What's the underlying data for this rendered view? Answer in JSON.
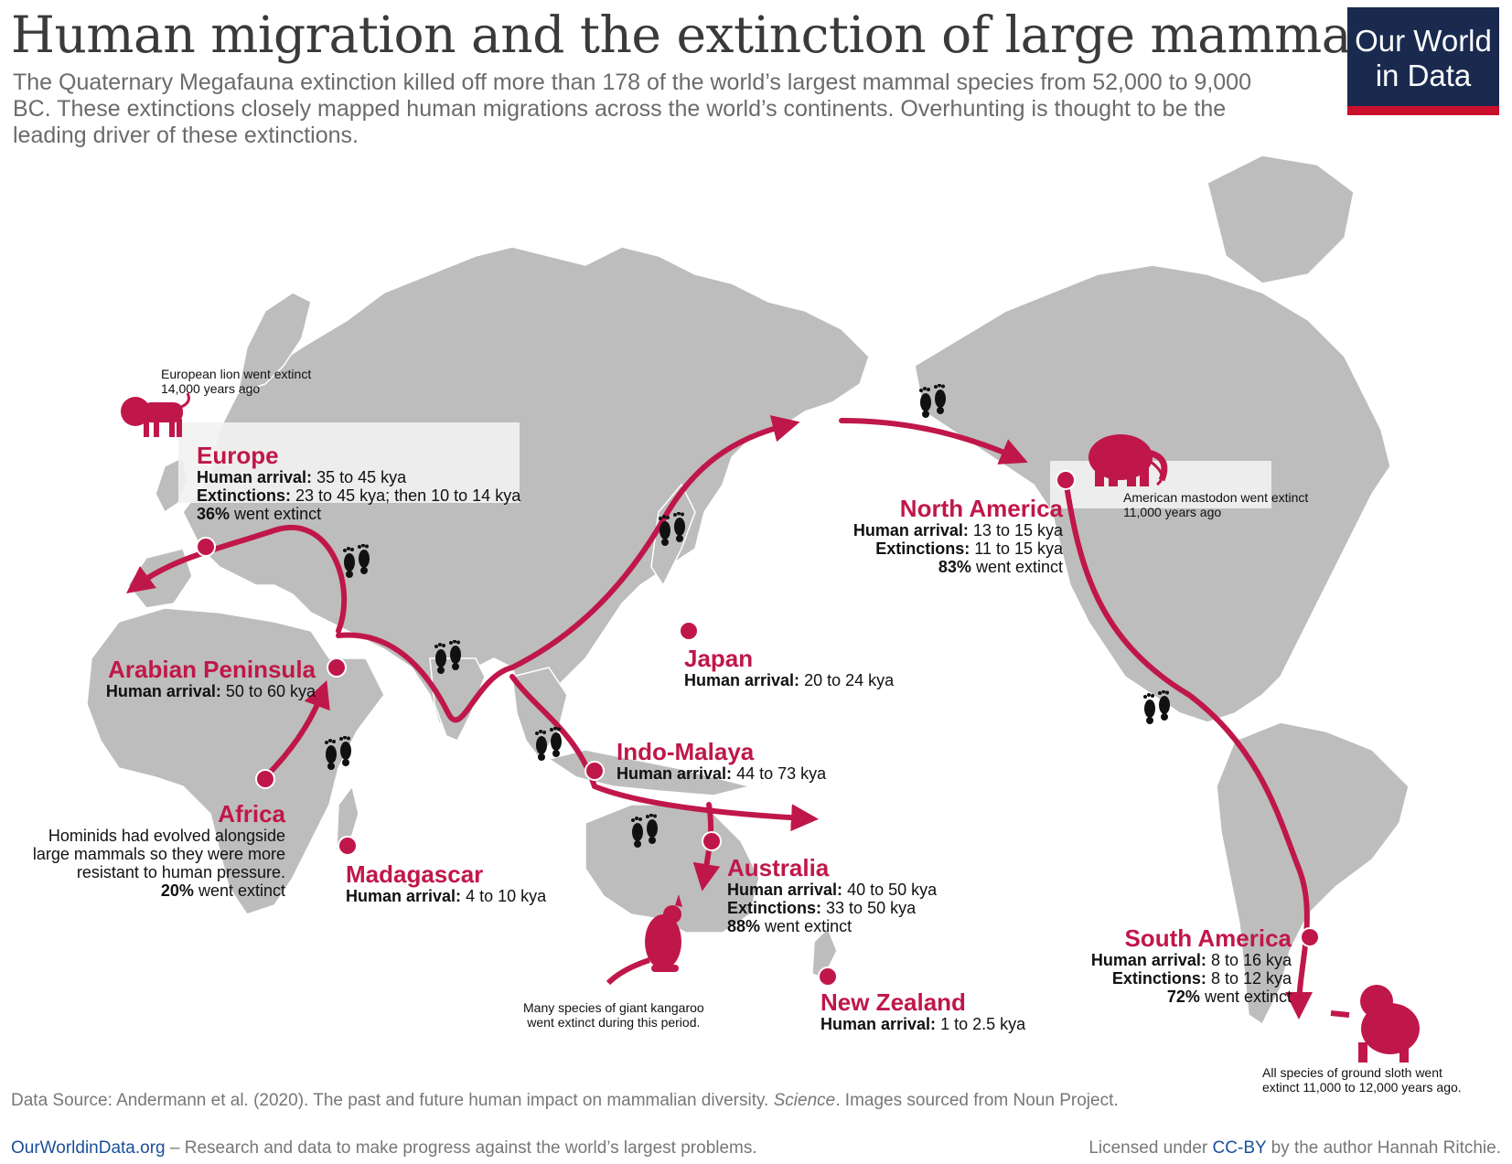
{
  "title": "Human migration and the extinction of large mammals",
  "subtitle": "The Quaternary Megafauna extinction killed off more than 178 of the world’s largest mammal species from 52,000 to 9,000 BC. These extinctions closely mapped human migrations across the world’s continents. Overhunting is thought to be the leading driver of these extinctions.",
  "logo": {
    "line1": "Our World",
    "line2": "in Data"
  },
  "colors": {
    "accent": "#c0174a",
    "land": "#bdbdbd",
    "logo_bg": "#1a2a4f",
    "logo_bar": "#c8102e"
  },
  "regions": {
    "europe": {
      "name": "Europe",
      "arrival_label": "Human arrival:",
      "arrival": "35 to 45 kya",
      "ext_label": "Extinctions:",
      "ext": "23 to 45 kya; then 10 to 14 kya",
      "pct": "36%",
      "pct_suffix": "went extinct"
    },
    "arabia": {
      "name": "Arabian Peninsula",
      "arrival_label": "Human arrival:",
      "arrival": "50 to 60 kya"
    },
    "africa": {
      "name": "Africa",
      "note1": "Hominids had evolved alongside",
      "note2": "large mammals so they were more",
      "note3": "resistant to human pressure.",
      "pct": "20%",
      "pct_suffix": "went extinct"
    },
    "madagascar": {
      "name": "Madagascar",
      "arrival_label": "Human arrival:",
      "arrival": "4 to 10 kya"
    },
    "japan": {
      "name": "Japan",
      "arrival_label": "Human arrival:",
      "arrival": "20 to 24 kya"
    },
    "indomalaya": {
      "name": "Indo-Malaya",
      "arrival_label": "Human arrival:",
      "arrival": "44 to 73 kya"
    },
    "australia": {
      "name": "Australia",
      "arrival_label": "Human arrival:",
      "arrival": "40 to 50 kya",
      "ext_label": "Extinctions:",
      "ext": "33 to 50 kya",
      "pct": "88%",
      "pct_suffix": "went extinct"
    },
    "newzealand": {
      "name": "New Zealand",
      "arrival_label": "Human arrival:",
      "arrival": "1 to 2.5 kya"
    },
    "northamerica": {
      "name": "North America",
      "arrival_label": "Human arrival:",
      "arrival": "13 to 15 kya",
      "ext_label": "Extinctions:",
      "ext": "11 to 15 kya",
      "pct": "83%",
      "pct_suffix": "went extinct"
    },
    "southamerica": {
      "name": "South America",
      "arrival_label": "Human arrival:",
      "arrival": "8 to 16 kya",
      "ext_label": "Extinctions:",
      "ext": "8 to 12 kya",
      "pct": "72%",
      "pct_suffix": "went extinct"
    }
  },
  "notes": {
    "lion_1": "European lion went extinct",
    "lion_2": "14,000 years ago",
    "mastodon_1": "American mastodon went extinct",
    "mastodon_2": "11,000 years ago",
    "kangaroo_1": "Many species of giant kangaroo",
    "kangaroo_2": "went extinct during this period.",
    "sloth_1": "All species of ground sloth went",
    "sloth_2": "extinct 11,000 to 12,000 years ago."
  },
  "icons": [
    "lion-icon",
    "mammoth-icon",
    "kangaroo-icon",
    "sloth-icon",
    "footprints-icon"
  ],
  "footer": {
    "source_prefix": "Data Source: Andermann et al. (2020). The past and future human impact on mammalian diversity. ",
    "source_journal": "Science",
    "source_suffix": ". Images sourced from Noun Project.",
    "site": "OurWorldinData.org",
    "tagline": " – Research and data to make progress against the world’s largest problems.",
    "license_prefix": "Licensed under ",
    "license": "CC-BY",
    "license_suffix": " by the author Hannah Ritchie."
  }
}
